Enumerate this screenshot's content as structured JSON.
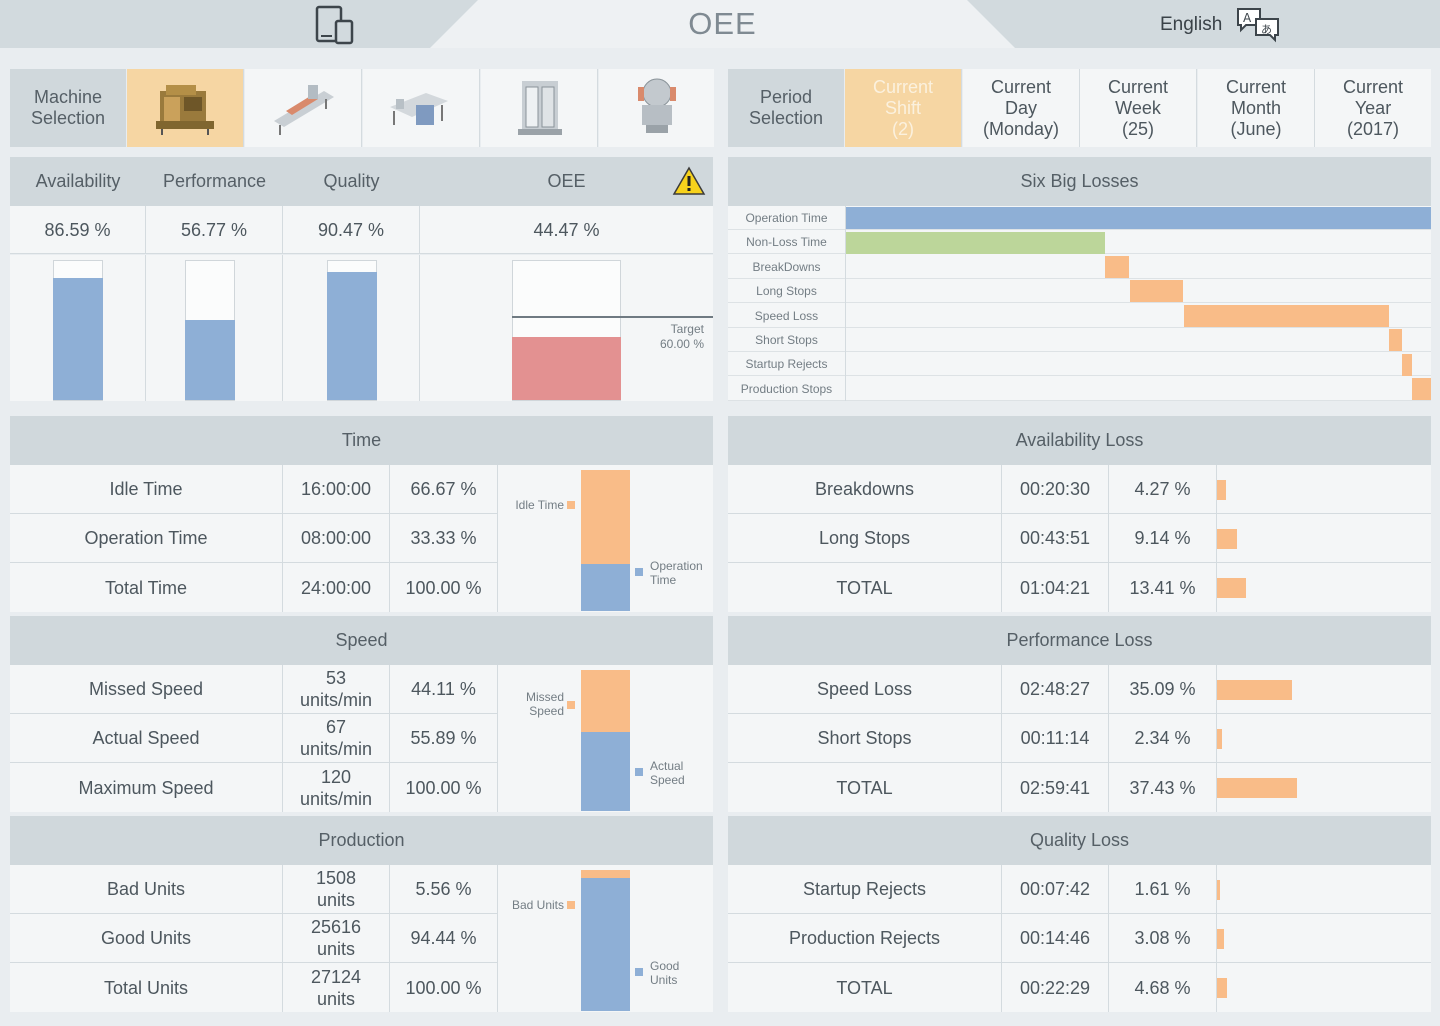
{
  "header": {
    "title": "OEE",
    "language": "English"
  },
  "machine_selection": {
    "label_line1": "Machine",
    "label_line2": "Selection"
  },
  "period_selection": {
    "label_line1": "Period",
    "label_line2": "Selection",
    "options": [
      {
        "l1": "Current",
        "l2": "Shift",
        "l3": "(2)"
      },
      {
        "l1": "Current",
        "l2": "Day",
        "l3": "(Monday)"
      },
      {
        "l1": "Current",
        "l2": "Week",
        "l3": "(25)"
      },
      {
        "l1": "Current",
        "l2": "Month",
        "l3": "(June)"
      },
      {
        "l1": "Current",
        "l2": "Year",
        "l3": "(2017)"
      }
    ]
  },
  "kpi": {
    "availability_label": "Availability",
    "availability_value": "86.59 %",
    "availability_fraction": 0.8659,
    "performance_label": "Performance",
    "performance_value": "56.77 %",
    "performance_fraction": 0.5677,
    "quality_label": "Quality",
    "quality_value": "90.47 %",
    "quality_fraction": 0.9047,
    "oee_label": "OEE",
    "oee_value": "44.47 %",
    "oee_fraction": 0.4447,
    "target_label": "Target",
    "target_value": "60.00 %",
    "target_fraction": 0.6
  },
  "six_big_losses": {
    "title": "Six Big Losses",
    "rows": [
      "Operation Time",
      "Non-Loss Time",
      "BreakDowns",
      "Long Stops",
      "Speed Loss",
      "Short Stops",
      "Startup Rejects",
      "Production Stops"
    ]
  },
  "time": {
    "title": "Time",
    "rows": [
      {
        "label": "Idle Time",
        "value": "16:00:00",
        "pct": "66.67 %"
      },
      {
        "label": "Operation Time",
        "value": "08:00:00",
        "pct": "33.33 %"
      },
      {
        "label": "Total Time",
        "value": "24:00:00",
        "pct": "100.00 %"
      }
    ],
    "legend_top": "Idle Time",
    "legend_bottom_1": "Operation",
    "legend_bottom_2": "Time",
    "top_fraction": 0.6667
  },
  "speed": {
    "title": "Speed",
    "rows": [
      {
        "label": "Missed Speed",
        "v1": "53",
        "v2": "units/min",
        "pct": "44.11 %"
      },
      {
        "label": "Actual Speed",
        "v1": "67",
        "v2": "units/min",
        "pct": "55.89 %"
      },
      {
        "label": "Maximum Speed",
        "v1": "120",
        "v2": "units/min",
        "pct": "100.00 %"
      }
    ],
    "legend_top_1": "Missed",
    "legend_top_2": "Speed",
    "legend_bottom_1": "Actual",
    "legend_bottom_2": "Speed",
    "top_fraction": 0.4411
  },
  "production": {
    "title": "Production",
    "rows": [
      {
        "label": "Bad Units",
        "v1": "1508",
        "v2": "units",
        "pct": "5.56 %"
      },
      {
        "label": "Good Units",
        "v1": "25616",
        "v2": "units",
        "pct": "94.44 %"
      },
      {
        "label": "Total Units",
        "v1": "27124",
        "v2": "units",
        "pct": "100.00 %"
      }
    ],
    "legend_top": "Bad Units",
    "legend_bottom_1": "Good",
    "legend_bottom_2": "Units",
    "top_fraction": 0.0556
  },
  "availability_loss": {
    "title": "Availability Loss",
    "rows": [
      {
        "label": "Breakdowns",
        "value": "00:20:30",
        "pct": "4.27 %",
        "fraction": 0.0427
      },
      {
        "label": "Long Stops",
        "value": "00:43:51",
        "pct": "9.14 %",
        "fraction": 0.0914
      },
      {
        "label": "TOTAL",
        "value": "01:04:21",
        "pct": "13.41 %",
        "fraction": 0.1341
      }
    ]
  },
  "performance_loss": {
    "title": "Performance Loss",
    "rows": [
      {
        "label": "Speed Loss",
        "value": "02:48:27",
        "pct": "35.09 %",
        "fraction": 0.3509
      },
      {
        "label": "Short Stops",
        "value": "00:11:14",
        "pct": "2.34 %",
        "fraction": 0.0234
      },
      {
        "label": "TOTAL",
        "value": "02:59:41",
        "pct": "37.43 %",
        "fraction": 0.3743
      }
    ]
  },
  "quality_loss": {
    "title": "Quality Loss",
    "rows": [
      {
        "label": "Startup Rejects",
        "value": "00:07:42",
        "pct": "1.61 %",
        "fraction": 0.0161
      },
      {
        "label": "Production Rejects",
        "value": "00:14:46",
        "pct": "3.08 %",
        "fraction": 0.0308
      },
      {
        "label": "TOTAL",
        "value": "00:22:29",
        "pct": "4.68 %",
        "fraction": 0.0468
      }
    ]
  },
  "colors": {
    "blue": "#8eafd6",
    "orange": "#f9bc88",
    "green": "#bcd69a",
    "red": "#e39191",
    "selected": "#f6d6a3"
  }
}
